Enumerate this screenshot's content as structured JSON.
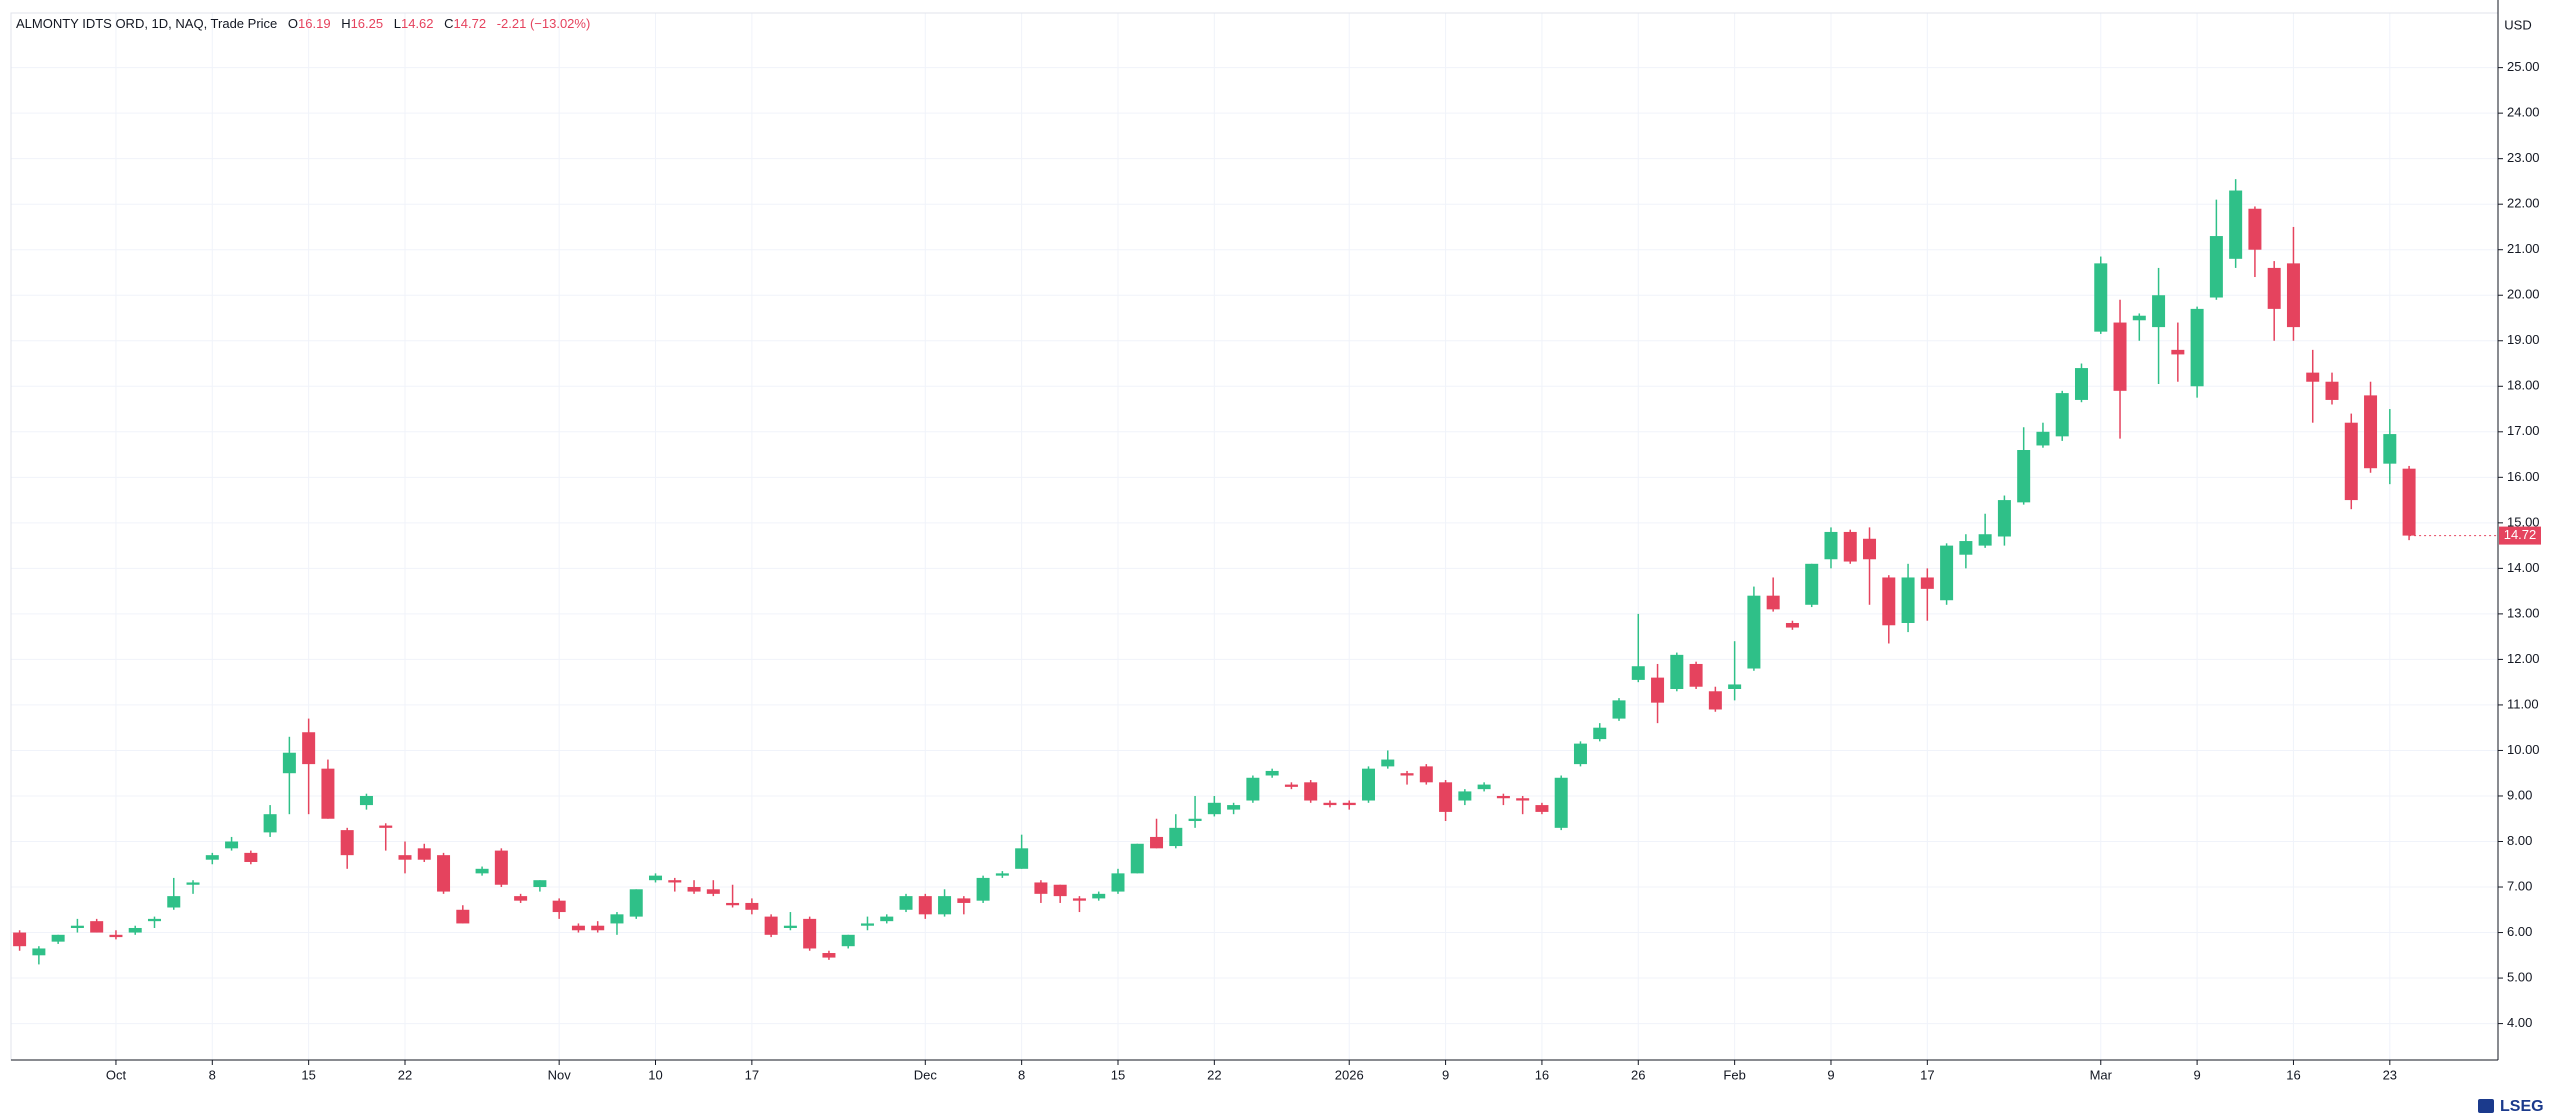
{
  "chart_data": {
    "type": "candlestick",
    "title": "ALMONTY IDTS ORD, 1D, NAQ, Trade Price",
    "ohlc_keys": [
      "O",
      "H",
      "L",
      "C"
    ],
    "change_label": "-2.21 (−13.02%)",
    "currency": "USD",
    "brand": "LSEG",
    "up_color": "#2fc088",
    "down_color": "#e5435e",
    "grid": true,
    "categories": [
      null,
      null,
      null,
      null,
      null,
      "Oct",
      null,
      null,
      null,
      null,
      "8",
      null,
      null,
      null,
      null,
      "15",
      null,
      null,
      null,
      null,
      "22",
      null,
      null,
      null,
      null,
      null,
      null,
      null,
      "Nov",
      null,
      null,
      null,
      null,
      "10",
      null,
      null,
      null,
      null,
      "17",
      null,
      null,
      null,
      null,
      null,
      null,
      null,
      null,
      "Dec",
      null,
      null,
      null,
      null,
      "8",
      null,
      null,
      null,
      null,
      "15",
      null,
      null,
      null,
      null,
      "22",
      null,
      null,
      null,
      null,
      null,
      null,
      "2026",
      null,
      null,
      null,
      null,
      "9",
      null,
      null,
      null,
      null,
      "16",
      null,
      null,
      null,
      null,
      "26",
      null,
      null,
      null,
      null,
      "Feb",
      null,
      null,
      null,
      null,
      "9",
      null,
      null,
      null,
      null,
      "17",
      null,
      null,
      null,
      null,
      null,
      null,
      null,
      null,
      "Mar",
      null,
      null,
      null,
      null,
      "9",
      null,
      null,
      null,
      null,
      "16",
      null,
      null,
      null,
      null,
      "23",
      null
    ],
    "open": [
      6.0,
      5.5,
      5.8,
      6.1,
      6.25,
      5.95,
      6.0,
      6.25,
      6.55,
      7.05,
      7.6,
      7.85,
      7.75,
      8.2,
      9.5,
      10.4,
      9.6,
      8.25,
      8.8,
      8.35,
      7.7,
      7.85,
      7.7,
      6.5,
      7.3,
      7.8,
      6.8,
      7.0,
      6.7,
      6.15,
      6.15,
      6.2,
      6.35,
      7.15,
      7.15,
      7.0,
      6.95,
      6.65,
      6.65,
      6.35,
      6.1,
      6.3,
      5.55,
      5.7,
      6.15,
      6.25,
      6.5,
      6.8,
      6.4,
      6.75,
      6.7,
      7.25,
      7.4,
      7.1,
      7.05,
      6.75,
      6.75,
      6.9,
      7.3,
      8.1,
      7.9,
      8.45,
      8.6,
      8.7,
      8.9,
      9.45,
      9.25,
      9.3,
      8.85,
      8.85,
      8.9,
      9.65,
      9.5,
      9.65,
      9.3,
      8.9,
      9.15,
      9.0,
      8.95,
      8.8,
      8.3,
      9.7,
      10.25,
      10.7,
      11.55,
      11.6,
      11.35,
      11.9,
      11.3,
      11.35,
      11.8,
      13.4,
      12.8,
      13.2,
      14.2,
      14.8,
      14.65,
      13.8,
      12.8,
      13.8,
      13.3,
      14.3,
      14.5,
      14.7,
      15.45,
      16.7,
      16.9,
      17.7,
      19.2,
      19.4,
      19.45,
      19.3,
      18.8,
      18.0,
      19.95,
      20.8,
      21.9,
      20.6,
      20.7,
      18.3,
      18.1,
      17.2,
      17.8,
      16.3,
      16.19
    ],
    "high": [
      6.05,
      5.7,
      5.95,
      6.3,
      6.3,
      6.05,
      6.15,
      6.35,
      7.2,
      7.15,
      7.75,
      8.1,
      7.8,
      8.8,
      10.3,
      10.7,
      9.8,
      8.3,
      9.05,
      8.4,
      8.0,
      7.95,
      7.75,
      6.6,
      7.45,
      7.85,
      6.85,
      7.15,
      6.75,
      6.2,
      6.25,
      6.45,
      6.95,
      7.3,
      7.2,
      7.15,
      7.15,
      7.05,
      6.75,
      6.4,
      6.45,
      6.35,
      5.6,
      5.95,
      6.35,
      6.4,
      6.85,
      6.85,
      6.95,
      6.8,
      7.25,
      7.35,
      8.15,
      7.15,
      7.05,
      6.8,
      6.9,
      7.4,
      7.95,
      8.5,
      8.6,
      9.0,
      9.0,
      8.85,
      9.45,
      9.6,
      9.3,
      9.35,
      8.9,
      8.9,
      9.65,
      10.0,
      9.55,
      9.7,
      9.35,
      9.15,
      9.3,
      9.05,
      9.0,
      8.85,
      9.45,
      10.2,
      10.6,
      11.15,
      13.0,
      11.9,
      12.15,
      11.95,
      11.4,
      12.4,
      13.6,
      13.8,
      12.85,
      14.1,
      14.9,
      14.85,
      14.9,
      13.85,
      14.1,
      14.0,
      14.55,
      14.75,
      15.2,
      15.6,
      17.1,
      17.2,
      17.9,
      18.5,
      20.85,
      19.9,
      19.6,
      20.6,
      19.4,
      19.75,
      22.1,
      22.55,
      21.95,
      20.75,
      21.5,
      18.8,
      18.3,
      17.4,
      18.1,
      17.5,
      16.25
    ],
    "low": [
      5.6,
      5.3,
      5.75,
      6.0,
      6.0,
      5.85,
      5.95,
      6.1,
      6.5,
      6.85,
      7.5,
      7.8,
      7.5,
      8.1,
      8.6,
      8.6,
      8.5,
      7.4,
      8.7,
      7.8,
      7.3,
      7.55,
      6.85,
      6.2,
      7.25,
      7.0,
      6.65,
      6.9,
      6.3,
      6.0,
      6.0,
      5.95,
      6.3,
      7.1,
      6.9,
      6.85,
      6.8,
      6.55,
      6.4,
      5.9,
      6.05,
      5.6,
      5.4,
      5.65,
      6.05,
      6.2,
      6.45,
      6.3,
      6.35,
      6.4,
      6.65,
      7.2,
      7.4,
      6.65,
      6.65,
      6.45,
      6.7,
      6.85,
      7.3,
      7.85,
      7.85,
      8.3,
      8.55,
      8.6,
      8.85,
      9.4,
      9.15,
      8.85,
      8.75,
      8.7,
      8.85,
      9.6,
      9.25,
      9.25,
      8.45,
      8.8,
      9.1,
      8.8,
      8.6,
      8.6,
      8.25,
      9.65,
      10.2,
      10.65,
      11.5,
      10.6,
      11.3,
      11.35,
      10.85,
      11.1,
      11.75,
      13.05,
      12.65,
      13.15,
      14.0,
      14.1,
      13.2,
      12.35,
      12.6,
      12.85,
      13.2,
      14.0,
      14.45,
      14.5,
      15.4,
      16.65,
      16.8,
      17.65,
      19.15,
      16.85,
      19.0,
      18.05,
      18.1,
      17.75,
      19.9,
      20.6,
      20.4,
      19.0,
      19.0,
      17.2,
      17.6,
      15.3,
      16.1,
      15.85,
      14.62
    ],
    "close": [
      5.7,
      5.65,
      5.95,
      6.15,
      6.0,
      5.9,
      6.1,
      6.3,
      6.8,
      7.1,
      7.7,
      8.0,
      7.55,
      8.6,
      9.95,
      9.7,
      8.5,
      7.7,
      9.0,
      8.3,
      7.6,
      7.6,
      6.9,
      6.2,
      7.4,
      7.05,
      6.7,
      7.15,
      6.45,
      6.05,
      6.05,
      6.4,
      6.95,
      7.25,
      7.1,
      6.9,
      6.85,
      6.6,
      6.5,
      5.95,
      6.15,
      5.65,
      5.45,
      5.95,
      6.2,
      6.35,
      6.8,
      6.4,
      6.8,
      6.65,
      7.2,
      7.3,
      7.85,
      6.85,
      6.8,
      6.7,
      6.85,
      7.3,
      7.95,
      7.85,
      8.3,
      8.5,
      8.85,
      8.8,
      9.4,
      9.55,
      9.2,
      8.9,
      8.8,
      8.8,
      9.6,
      9.8,
      9.45,
      9.3,
      8.65,
      9.1,
      9.25,
      8.95,
      8.9,
      8.65,
      9.4,
      10.15,
      10.5,
      11.1,
      11.85,
      11.05,
      12.1,
      11.4,
      10.9,
      11.45,
      13.4,
      13.1,
      12.7,
      14.1,
      14.8,
      14.15,
      14.2,
      12.75,
      13.8,
      13.55,
      14.5,
      14.6,
      14.75,
      15.5,
      16.6,
      17.0,
      17.85,
      18.4,
      20.7,
      17.9,
      19.55,
      20.0,
      18.7,
      19.7,
      21.3,
      22.3,
      21.0,
      19.7,
      19.3,
      18.1,
      17.7,
      15.5,
      16.2,
      16.95,
      14.72
    ],
    "ylim": [
      3.2,
      26.2
    ],
    "yticks": [
      {
        "value": 4,
        "label": "4.00"
      },
      {
        "value": 5,
        "label": "5.00"
      },
      {
        "value": 6,
        "label": "6.00"
      },
      {
        "value": 7,
        "label": "7.00"
      },
      {
        "value": 8,
        "label": "8.00"
      },
      {
        "value": 9,
        "label": "9.00"
      },
      {
        "value": 10,
        "label": "10.00"
      },
      {
        "value": 11,
        "label": "11.00"
      },
      {
        "value": 12,
        "label": "12.00"
      },
      {
        "value": 13,
        "label": "13.00"
      },
      {
        "value": 14,
        "label": "14.00"
      },
      {
        "value": 15,
        "label": "15.00"
      },
      {
        "value": 16,
        "label": "16.00"
      },
      {
        "value": 17,
        "label": "17.00"
      },
      {
        "value": 18,
        "label": "18.00"
      },
      {
        "value": 19,
        "label": "19.00"
      },
      {
        "value": 20,
        "label": "20.00"
      },
      {
        "value": 21,
        "label": "21.00"
      },
      {
        "value": 22,
        "label": "22.00"
      },
      {
        "value": 23,
        "label": "23.00"
      },
      {
        "value": 24,
        "label": "24.00"
      },
      {
        "value": 25,
        "label": "25.00"
      }
    ]
  }
}
